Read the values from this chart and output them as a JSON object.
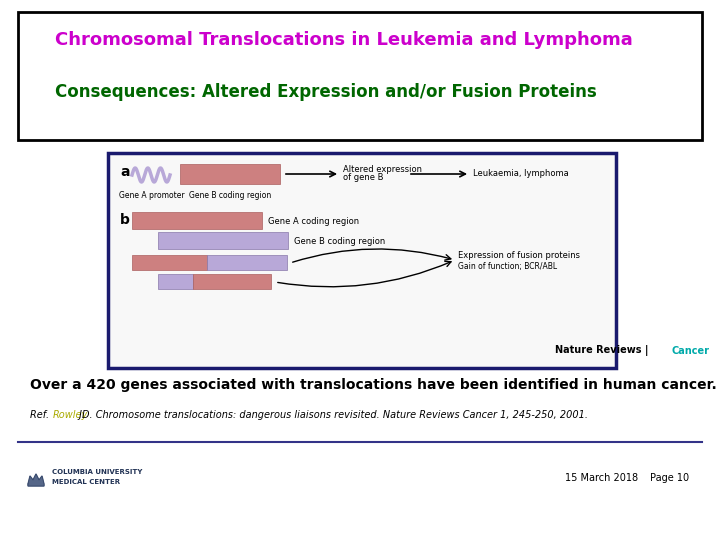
{
  "title1": "Chromosomal Translocations in Leukemia and Lymphoma",
  "title1_color": "#CC00CC",
  "title2": "Consequences: Altered Expression and/or Fusion Proteins",
  "title2_color": "#006600",
  "main_text": "Over a 420 genes associated with translocations have been identified in human cancer.",
  "ref_prefix": "Ref.  ",
  "ref_link": "Rowley",
  "ref_link_color": "#AAAA00",
  "ref_rest": " JD. Chromosome translocations: dangerous liaisons revisited. Nature Reviews Cancer 1, 245-250, 2001.",
  "footer_date": "15 March 2018",
  "footer_page": "Page 10",
  "bg_color": "#FFFFFF",
  "title_box_border": "#000000",
  "image_box_border": "#1a1a6e",
  "salmon_color": "#CD8080",
  "lavender_color": "#B8A8D8",
  "nature_reviews_color": "#00AAAA",
  "separator_color": "#333388"
}
